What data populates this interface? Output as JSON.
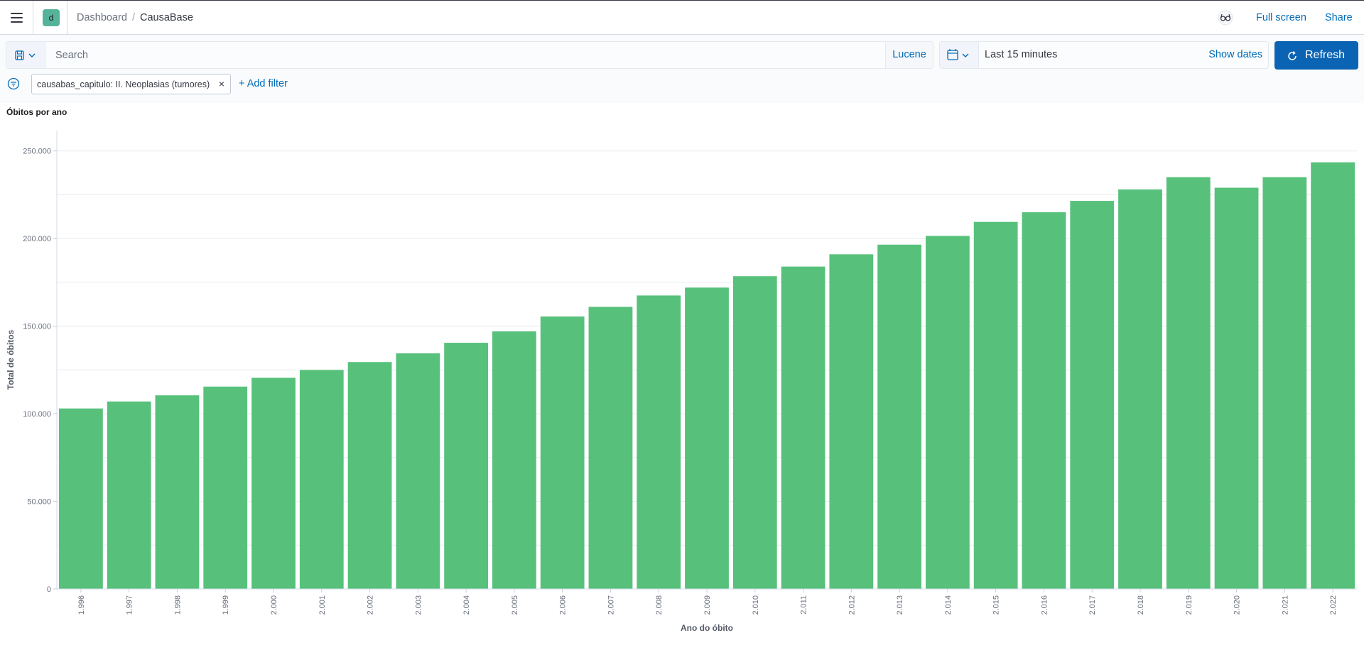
{
  "header": {
    "space_initial": "d",
    "breadcrumb_parent": "Dashboard",
    "breadcrumb_separator": "/",
    "breadcrumb_current": "CausaBase",
    "full_screen_label": "Full screen",
    "share_label": "Share"
  },
  "query_bar": {
    "search_placeholder": "Search",
    "language_label": "Lucene",
    "date_range": "Last 15 minutes",
    "show_dates_label": "Show dates",
    "refresh_label": "Refresh"
  },
  "filters": {
    "pill_label": "causabas_capitulo: II. Neoplasias (tumores)",
    "remove_glyph": "×",
    "add_filter_label": "+ Add filter"
  },
  "panel": {
    "title": "Óbitos por ano"
  },
  "colors": {
    "bar": "#57c17b",
    "accent": "#0b64b3",
    "link": "#006bb8"
  },
  "chart_data": {
    "type": "bar",
    "title": "Óbitos por ano",
    "xlabel": "Ano do óbito",
    "ylabel": "Total de óbitos",
    "ylim": [
      0,
      260000
    ],
    "y_ticks": [
      0,
      50000,
      100000,
      150000,
      200000,
      250000
    ],
    "y_tick_labels": [
      "0",
      "50.000",
      "100.000",
      "150.000",
      "200.000",
      "250.000"
    ],
    "grid": true,
    "categories": [
      "1.996",
      "1.997",
      "1.998",
      "1.999",
      "2.000",
      "2.001",
      "2.002",
      "2.003",
      "2.004",
      "2.005",
      "2.006",
      "2.007",
      "2.008",
      "2.009",
      "2.010",
      "2.011",
      "2.012",
      "2.013",
      "2.014",
      "2.015",
      "2.016",
      "2.017",
      "2.018",
      "2.019",
      "2.020",
      "2.021",
      "2.022"
    ],
    "values": [
      103000,
      107000,
      110500,
      115500,
      120500,
      125000,
      129500,
      134500,
      140500,
      147000,
      155500,
      161000,
      167500,
      172000,
      178500,
      184000,
      191000,
      196500,
      201500,
      209500,
      215000,
      221500,
      228000,
      235000,
      229000,
      235000,
      243500
    ]
  }
}
